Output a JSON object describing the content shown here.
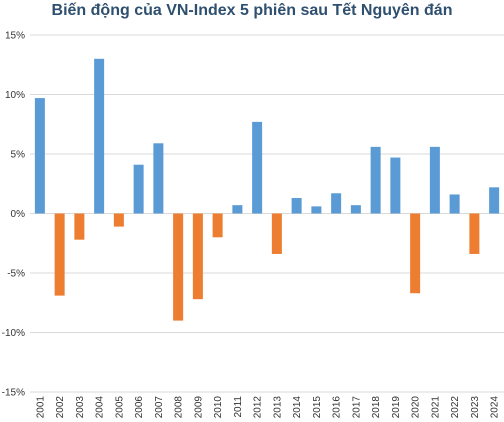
{
  "chart_data": {
    "type": "bar",
    "title": "Biến động của VN-Index 5 phiên sau Tết Nguyên đán",
    "xlabel": "",
    "ylabel": "",
    "categories": [
      "2001",
      "2002",
      "2003",
      "2004",
      "2005",
      "2006",
      "2007",
      "2008",
      "2009",
      "2010",
      "2011",
      "2012",
      "2013",
      "2014",
      "2015",
      "2016",
      "2017",
      "2018",
      "2019",
      "2020",
      "2021",
      "2022",
      "2023",
      "2024"
    ],
    "series": [
      {
        "values": [
          9.7,
          -6.9,
          -2.2,
          13.0,
          -1.1,
          4.1,
          5.9,
          -9.0,
          -7.2,
          -2.0,
          0.7,
          7.7,
          -3.4,
          1.3,
          0.6,
          1.7,
          0.7,
          5.6,
          4.7,
          -6.7,
          5.6,
          1.6,
          -3.4,
          2.2
        ]
      }
    ],
    "ylim": [
      -15,
      15
    ],
    "yticks": [
      15,
      10,
      5,
      0,
      -5,
      -10,
      -15
    ],
    "ytick_labels": [
      "15%",
      "10%",
      "5%",
      "0%",
      "-5%",
      "-10%",
      "-15%"
    ],
    "grid": true,
    "legend": "none",
    "colors": {
      "positive": "#5b9bd5",
      "negative": "#ed7d31",
      "grid": "#d9d9d9",
      "title": "#2f4f6f"
    }
  }
}
